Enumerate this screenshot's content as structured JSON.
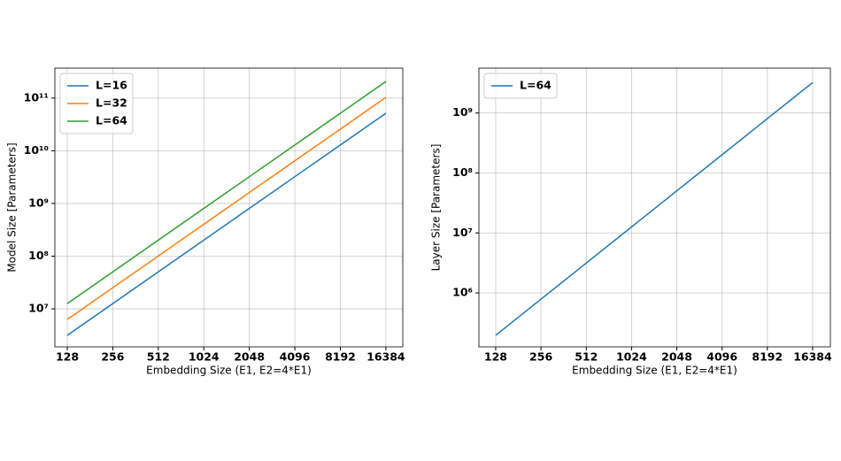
{
  "chart_data": [
    {
      "type": "line",
      "xlabel": "Embedding Size (E1, E2=4*E1)",
      "ylabel": "Model Size [Parameters]",
      "x": [
        128,
        256,
        512,
        1024,
        2048,
        4096,
        8192,
        16384
      ],
      "series": [
        {
          "name": "L=16",
          "color": "#1f77b4",
          "values": [
            3145728,
            12582912,
            50331648,
            201326592,
            805306368,
            3221225472,
            12884901888,
            51539607552
          ]
        },
        {
          "name": "L=32",
          "color": "#ff7f0e",
          "values": [
            6291456,
            25165824,
            100663296,
            402653184,
            1610612736,
            6442450944,
            25769803776,
            103079215104
          ]
        },
        {
          "name": "L=64",
          "color": "#2ca02c",
          "values": [
            12582912,
            50331648,
            201326592,
            805306368,
            3221225472,
            12884901888,
            51539607552,
            206158430208
          ]
        }
      ],
      "xscale": "log2",
      "yscale": "log",
      "grid": true,
      "legend": "upper left",
      "xlim": [
        106,
        21200
      ],
      "xticks": [
        128,
        256,
        512,
        1024,
        2048,
        4096,
        8192,
        16384
      ],
      "ylim": [
        1900000,
        370000000000
      ],
      "yticks": [
        {
          "value": 10000000,
          "label": "10⁷"
        },
        {
          "value": 100000000,
          "label": "10⁸"
        },
        {
          "value": 1000000000,
          "label": "10⁹"
        },
        {
          "value": 10000000000,
          "label": "10¹⁰"
        },
        {
          "value": 100000000000,
          "label": "10¹¹"
        }
      ]
    },
    {
      "type": "line",
      "xlabel": "Embedding Size (E1, E2=4*E1)",
      "ylabel": "Layer Size [Parameters]",
      "x": [
        128,
        256,
        512,
        1024,
        2048,
        4096,
        8192,
        16384
      ],
      "series": [
        {
          "name": "L=64",
          "color": "#1f77b4",
          "values": [
            196608,
            786432,
            3145728,
            12582912,
            50331648,
            201326592,
            805306368,
            3221225472
          ]
        }
      ],
      "xscale": "log2",
      "yscale": "log",
      "grid": true,
      "legend": "upper left",
      "xlim": [
        99,
        21500
      ],
      "xticks": [
        128,
        256,
        512,
        1024,
        2048,
        4096,
        8192,
        16384
      ],
      "ylim": [
        126000,
        5600000000
      ],
      "yticks": [
        {
          "value": 1000000,
          "label": "10⁶"
        },
        {
          "value": 10000000,
          "label": "10⁷"
        },
        {
          "value": 100000000,
          "label": "10⁸"
        },
        {
          "value": 1000000000,
          "label": "10⁹"
        }
      ]
    }
  ]
}
